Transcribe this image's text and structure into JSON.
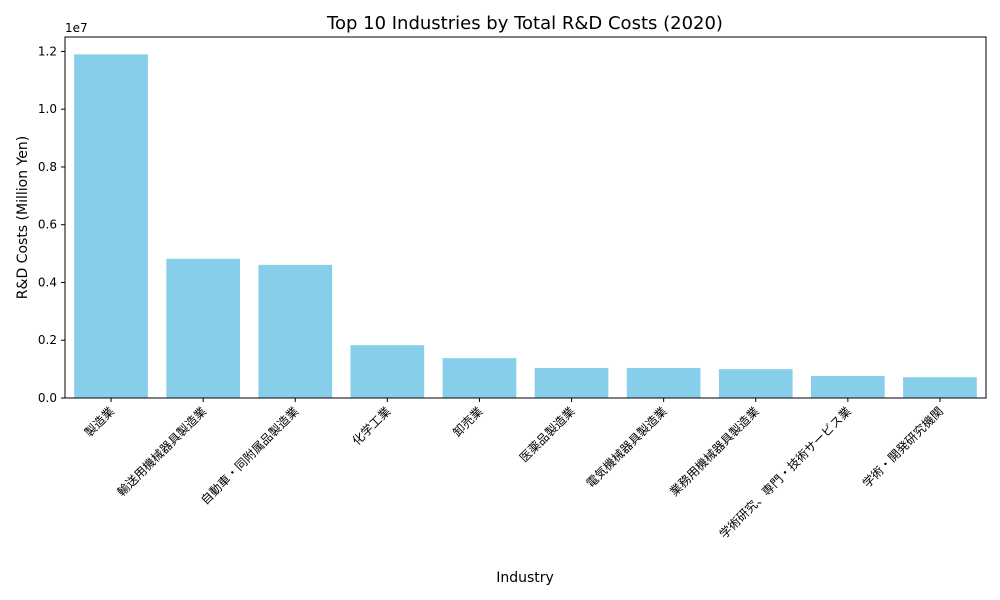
{
  "chart_data": {
    "type": "bar",
    "title": "Top 10 Industries by Total R&D Costs (2020)",
    "xlabel": "Industry",
    "ylabel": "R&D Costs (Million Yen)",
    "y_offset_label": "1e7",
    "color": "#87ceeb",
    "ylim": [
      0,
      12500000
    ],
    "yticks": [
      0,
      2000000,
      4000000,
      6000000,
      8000000,
      10000000,
      12000000
    ],
    "ytick_labels": [
      "0.0",
      "0.2",
      "0.4",
      "0.6",
      "0.8",
      "1.0",
      "1.2"
    ],
    "categories": [
      "製造業",
      "輸送用機械器具製造業",
      "自動車・同附属品製造業",
      "化学工業",
      "卸売業",
      "医薬品製造業",
      "電気機械器具製造業",
      "業務用機械器具製造業",
      "学術研究、専門・技術サービス業",
      "学術・開発研究機関"
    ],
    "values": [
      11900000,
      4820000,
      4610000,
      1830000,
      1380000,
      1040000,
      1040000,
      1000000,
      760000,
      720000
    ],
    "grid": false,
    "legend": "none"
  }
}
